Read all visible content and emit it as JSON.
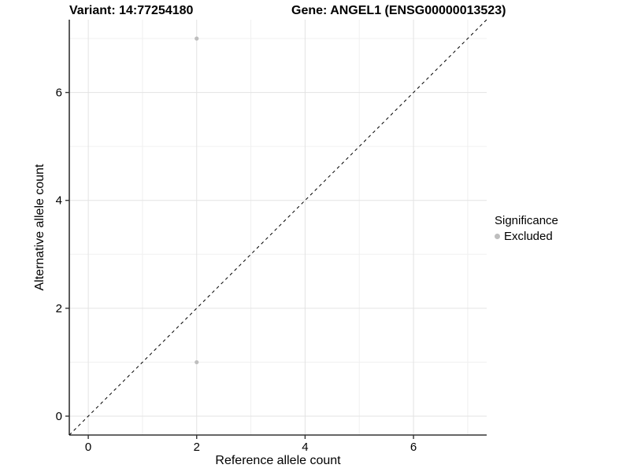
{
  "figure": {
    "title_left": "Variant: 14:77254180",
    "title_right": "Gene: ANGEL1 (ENSG00000013523)"
  },
  "chart_data": {
    "type": "scatter",
    "title": "Variant: 14:77254180   Gene: ANGEL1 (ENSG00000013523)",
    "xlabel": "Reference allele count",
    "ylabel": "Alternative allele count",
    "xlim": [
      -0.35,
      7.35
    ],
    "ylim": [
      -0.35,
      7.35
    ],
    "x_major_ticks": [
      0,
      2,
      4,
      6
    ],
    "y_major_ticks": [
      0,
      2,
      4,
      6
    ],
    "x_minor_gridlines": [
      1,
      3,
      5,
      7
    ],
    "y_minor_gridlines": [
      1,
      3,
      5,
      7
    ],
    "grid": true,
    "series": [
      {
        "name": "Excluded",
        "color": "#bebebe",
        "points": [
          {
            "x": 2,
            "y": 7
          },
          {
            "x": 2,
            "y": 1
          }
        ]
      }
    ],
    "reference_line": {
      "type": "abline",
      "slope": 1,
      "intercept": 0,
      "style": "dashed",
      "color": "#000000"
    },
    "legend": {
      "title": "Significance",
      "position": "right",
      "items": [
        {
          "label": "Excluded",
          "color": "#bebebe"
        }
      ]
    },
    "colors": {
      "background": "#ffffff",
      "grid_major": "#e3e3e3",
      "grid_minor": "#f0f0f0",
      "axis_line": "#333333",
      "tick_text": "#000000"
    }
  }
}
